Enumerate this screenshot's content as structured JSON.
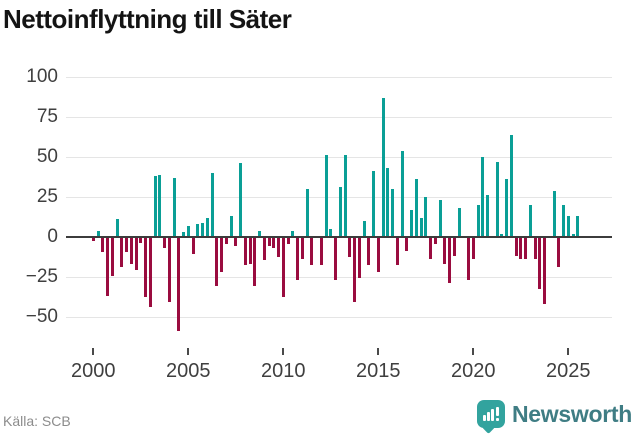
{
  "title": "Nettoinflyttning till Säter",
  "footer": {
    "source": "Källa: SCB"
  },
  "brand": {
    "name": "Newsworthy",
    "icon": "bar-chart-speech-bubble"
  },
  "colors": {
    "positive_bar": "#0a9f96",
    "negative_bar": "#9a0c3f",
    "zero_line": "#3c3c3c",
    "gridline": "#e5e5e5",
    "axis_text": "#3f3f3f",
    "title_text": "#141414",
    "source_text": "#8c8c8c",
    "brand_text": "#3f7d84",
    "brand_icon": "#32a39e"
  },
  "chart_data": {
    "type": "bar",
    "title": "Nettoinflyttning till Säter",
    "xlabel": "",
    "ylabel": "",
    "period": "quarterly",
    "start_period": "2000Q1",
    "values": [
      -2,
      4,
      -9,
      -36,
      -24,
      11,
      -18,
      -9,
      -16,
      -20,
      -3,
      -37,
      -43,
      38,
      39,
      -6,
      -40,
      37,
      -58,
      3,
      7,
      -10,
      8,
      9,
      12,
      40,
      -30,
      -21,
      -4,
      13,
      -5,
      46,
      -17,
      -16,
      -30,
      4,
      -14,
      -5,
      -6,
      -12,
      -37,
      -4,
      4,
      -26,
      -13,
      30,
      -17,
      0,
      -17,
      51,
      5,
      -26,
      31,
      51,
      -12,
      -40,
      -25,
      10,
      -17,
      41,
      -21,
      87,
      43,
      30,
      -17,
      54,
      -8,
      17,
      36,
      12,
      25,
      -13,
      -4,
      23,
      -16,
      -28,
      -11,
      18,
      0,
      -26,
      -13,
      20,
      50,
      26,
      0,
      47,
      2,
      36,
      64,
      -11,
      -13,
      -13,
      20,
      -13,
      -32,
      -41,
      0,
      29,
      -18,
      20,
      13,
      2,
      13
    ],
    "xticks": [
      {
        "label": "2000",
        "year": 2000
      },
      {
        "label": "2005",
        "year": 2005
      },
      {
        "label": "2010",
        "year": 2010
      },
      {
        "label": "2015",
        "year": 2015
      },
      {
        "label": "2020",
        "year": 2020
      },
      {
        "label": "2025",
        "year": 2025
      }
    ],
    "yticks": [
      {
        "label": "100",
        "value": 100
      },
      {
        "label": "75",
        "value": 75
      },
      {
        "label": "50",
        "value": 50
      },
      {
        "label": "25",
        "value": 25
      },
      {
        "label": "0",
        "value": 0
      },
      {
        "label": "−25",
        "value": -25
      },
      {
        "label": "−50",
        "value": -50
      }
    ],
    "ylim": [
      -62,
      105
    ],
    "grid": true,
    "legend": false
  }
}
